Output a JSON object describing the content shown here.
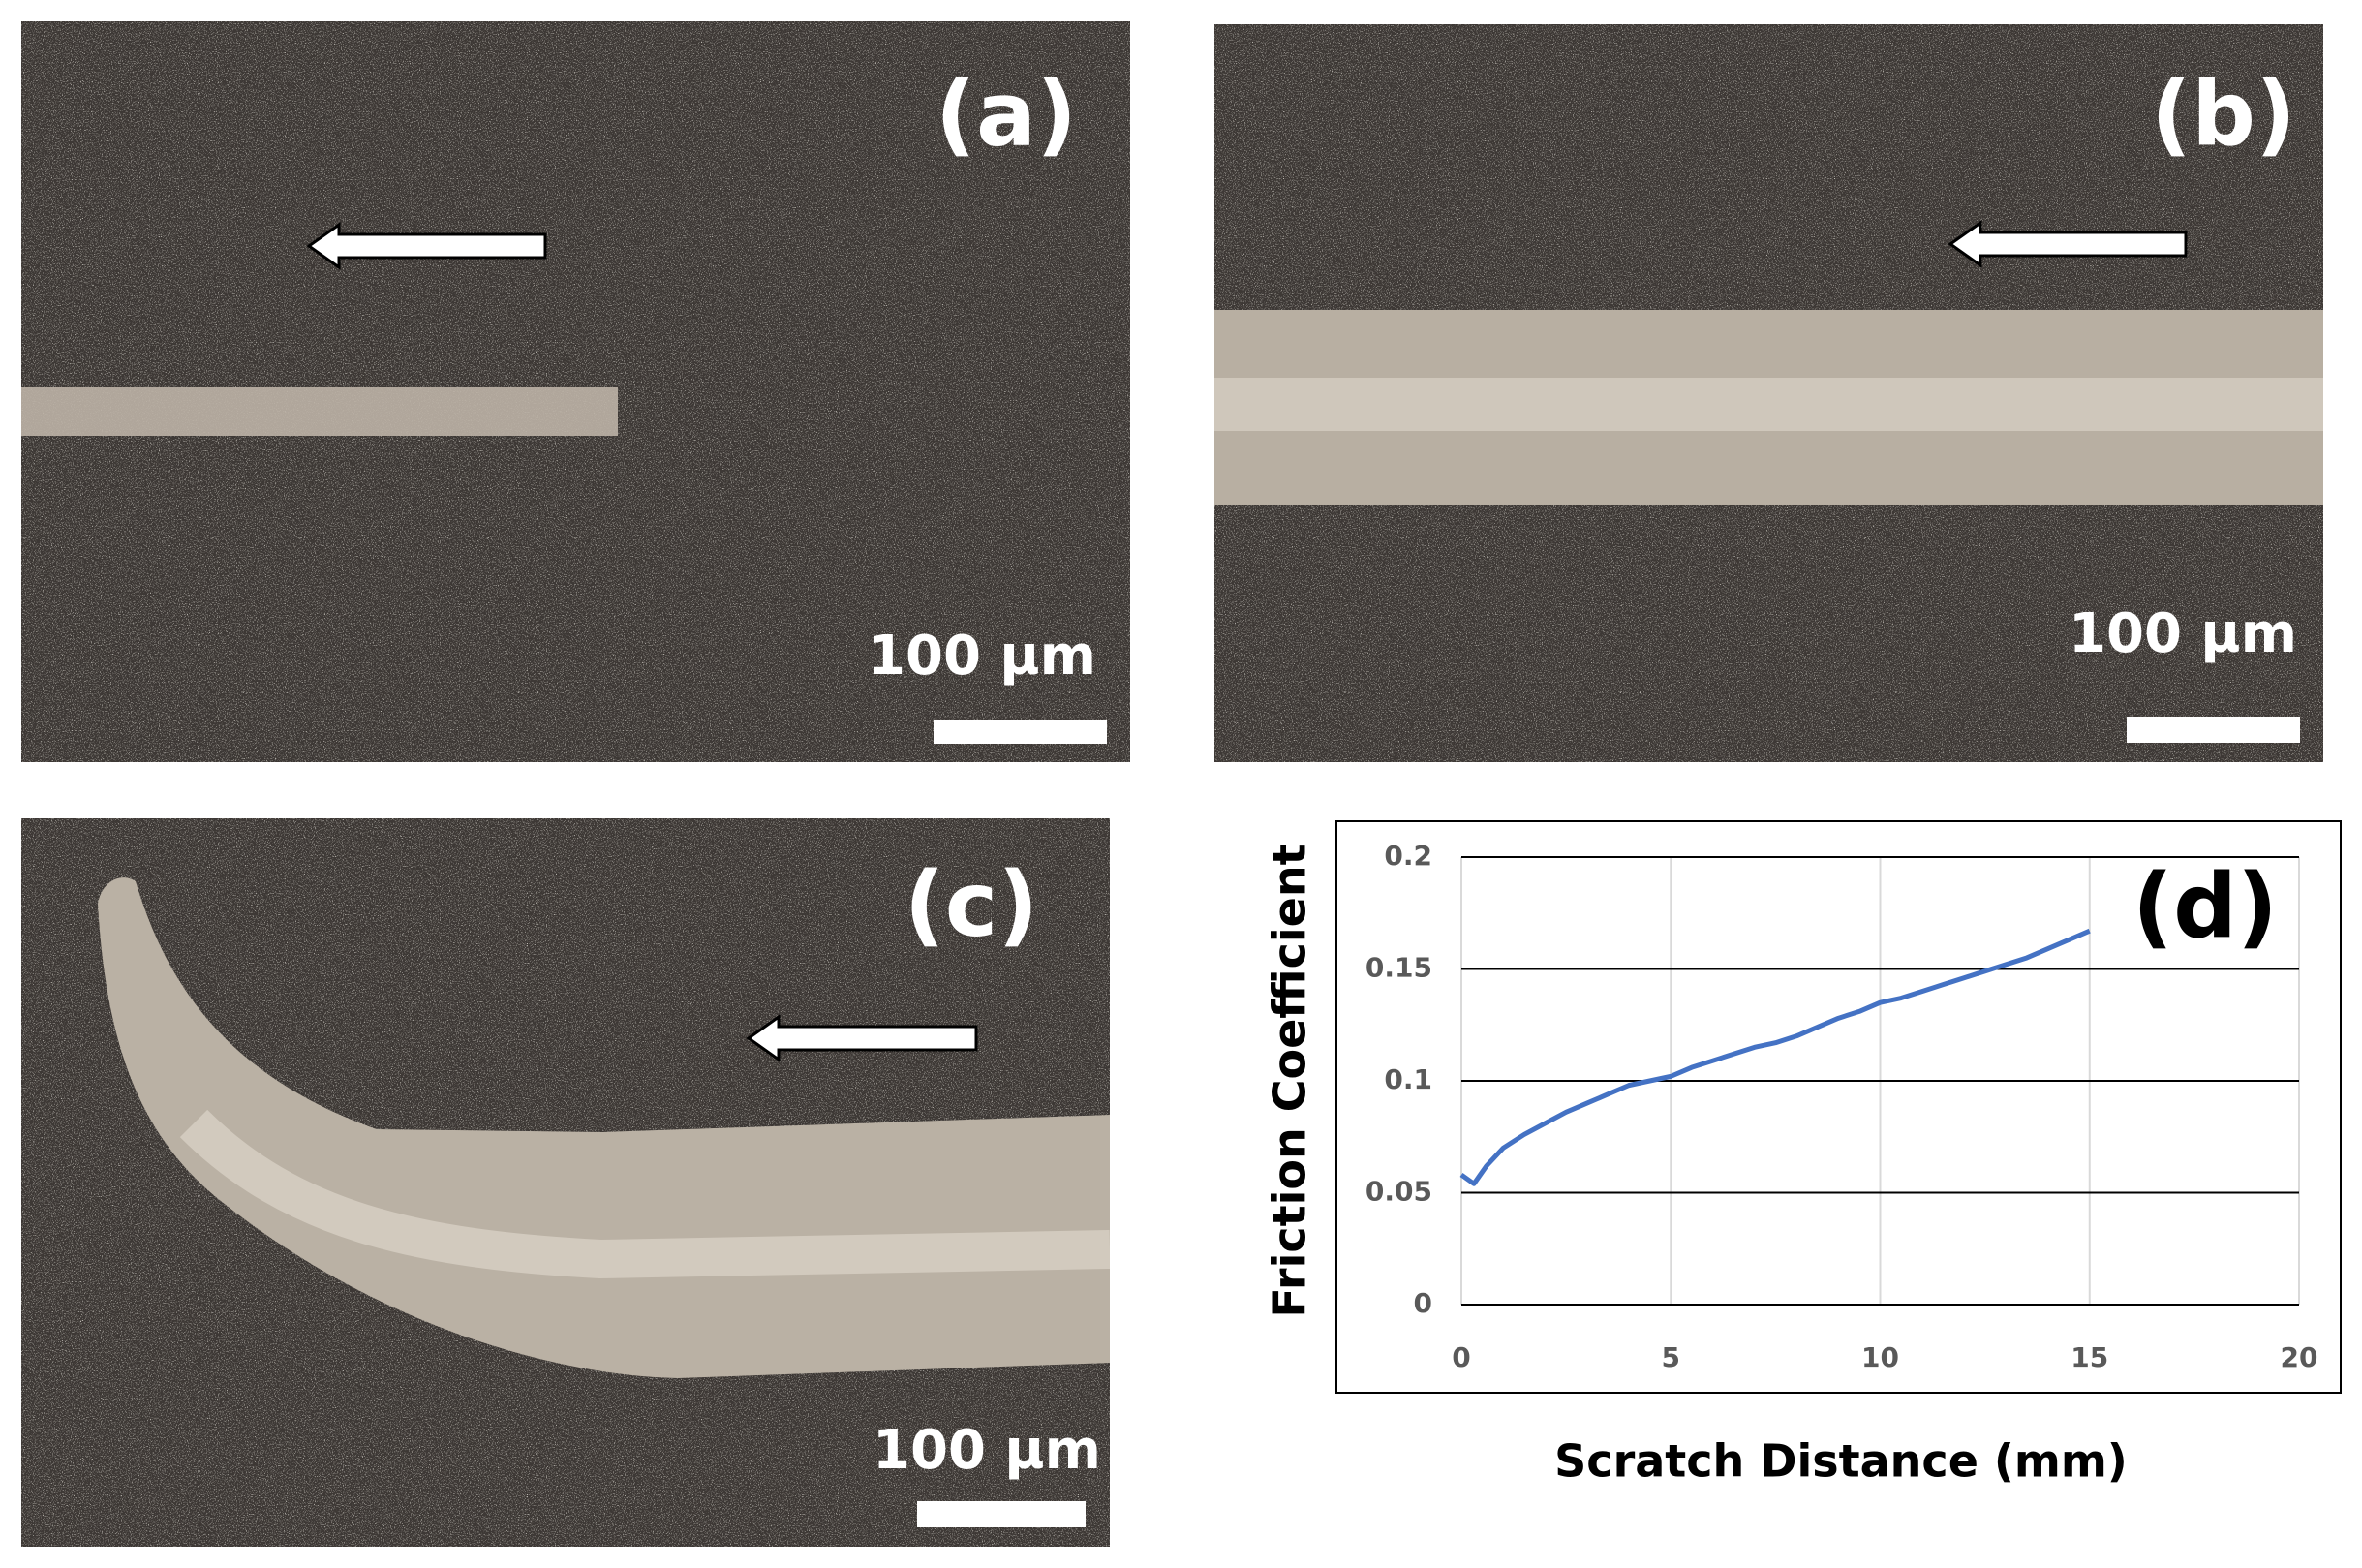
{
  "panels": [
    {
      "label": "(a)",
      "scale_bar": "100 µm"
    },
    {
      "label": "(b)",
      "scale_bar": "100 µm"
    },
    {
      "label": "(c)",
      "scale_bar": "100 µm"
    }
  ],
  "chart_data": {
    "type": "line",
    "label": "(d)",
    "x_label": "Scratch Distance (mm)",
    "y_label": "Friction Coefficient",
    "x": [
      0,
      0.3,
      0.6,
      1,
      1.5,
      2,
      2.5,
      3,
      3.5,
      4,
      4.5,
      5,
      5.5,
      6,
      6.5,
      7,
      7.5,
      8,
      8.5,
      9,
      9.5,
      10,
      10.5,
      11,
      11.5,
      12,
      12.5,
      13,
      13.5,
      14,
      14.5,
      15
    ],
    "series": [
      {
        "name": "Friction Coefficient",
        "color": "#4472c4",
        "values": [
          0.058,
          0.054,
          0.062,
          0.07,
          0.076,
          0.081,
          0.086,
          0.09,
          0.094,
          0.098,
          0.1,
          0.102,
          0.106,
          0.109,
          0.112,
          0.115,
          0.117,
          0.12,
          0.124,
          0.128,
          0.131,
          0.135,
          0.137,
          0.14,
          0.143,
          0.146,
          0.149,
          0.152,
          0.155,
          0.159,
          0.163,
          0.167
        ]
      }
    ],
    "xlim": [
      0,
      20
    ],
    "xticks": [
      0,
      5,
      10,
      15,
      20
    ],
    "ylim": [
      0,
      0.2
    ],
    "yticks": [
      0,
      0.05,
      0.1,
      0.15,
      0.2
    ],
    "grid": true
  }
}
